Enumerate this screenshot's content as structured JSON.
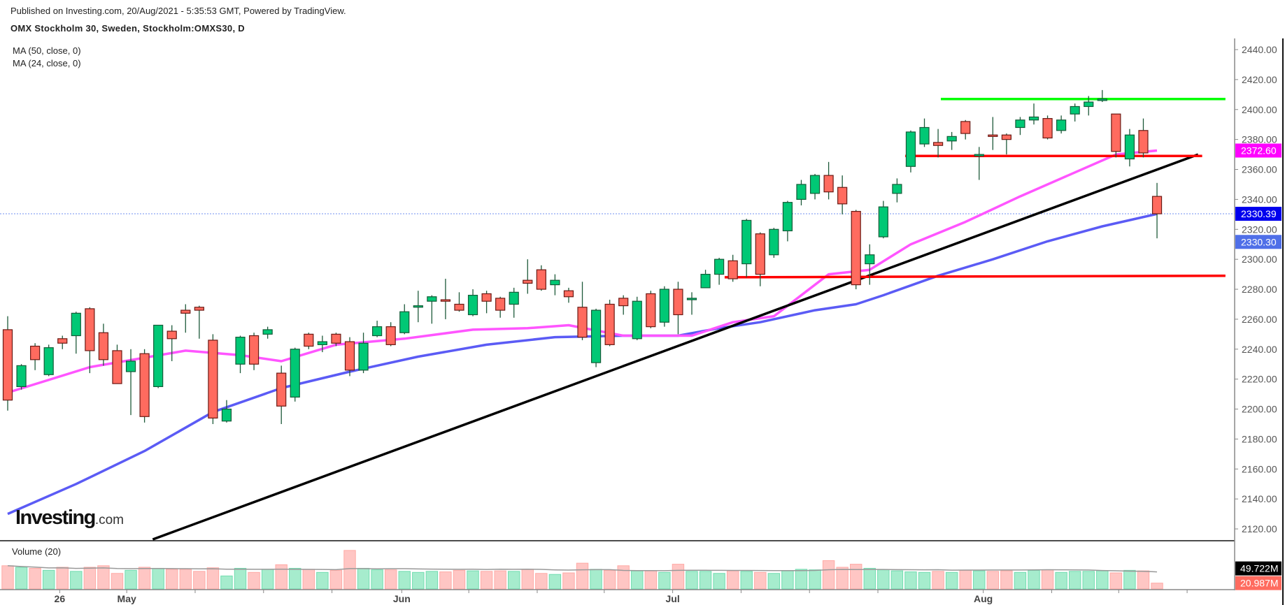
{
  "header": {
    "published": "Published on Investing.com, 20/Aug/2021 - 5:35:53 GMT, Powered by TradingView.",
    "title": "OMX Stockholm 30, Sweden, Stockholm:OMXS30, D",
    "ma50_label": "MA (50, close, 0)",
    "ma24_label": "MA (24, close, 0)",
    "volume_label": "Volume (20)"
  },
  "logo": {
    "main": "Investing",
    "suffix": ".com"
  },
  "colors": {
    "up": "#00c875",
    "down": "#ff6b5f",
    "ma50": "#5b5bf5",
    "ma24": "#ff55ff",
    "trend": "#000000",
    "support": "#ff0000",
    "resistance": "#00ff00",
    "last_price": "#0000ee",
    "ma50_tag": "#4f6fe8",
    "ma24_tag": "#ff00ff"
  },
  "chart_data": {
    "type": "candlestick",
    "title": "OMX Stockholm 30, Sweden, Stockholm:OMXS30, D",
    "ylim": [
      2110,
      2447
    ],
    "yticks": [
      "2120.00",
      "2140.00",
      "2160.00",
      "2180.00",
      "2200.00",
      "2220.00",
      "2240.00",
      "2260.00",
      "2280.00",
      "2300.00",
      "2320.00",
      "2340.00",
      "2360.00",
      "2380.00",
      "2400.00",
      "2420.00",
      "2440.00"
    ],
    "xticks": [
      {
        "label": "26",
        "index": 3.8
      },
      {
        "label": "May",
        "index": 8.7
      },
      {
        "label": "Jun",
        "index": 28.8
      },
      {
        "label": "Jul",
        "index": 48.6
      },
      {
        "label": "Aug",
        "index": 71.3
      }
    ],
    "minor_ticks": [
      13.7,
      18.7,
      23.7,
      33.7,
      38.7,
      43.6,
      53.6,
      58.6,
      63.6,
      76.3,
      81.2,
      86.2
    ],
    "candles_ohlc": [
      [
        2253,
        2262,
        2199,
        2206
      ],
      [
        2215,
        2230,
        2213,
        2229
      ],
      [
        2242,
        2244,
        2226,
        2233
      ],
      [
        2223,
        2243,
        2222,
        2241
      ],
      [
        2247,
        2249,
        2240,
        2244
      ],
      [
        2249,
        2265,
        2237,
        2264
      ],
      [
        2267,
        2268,
        2224,
        2239
      ],
      [
        2251,
        2257,
        2229,
        2233
      ],
      [
        2239,
        2243,
        2217,
        2217
      ],
      [
        2225,
        2240,
        2196,
        2232
      ],
      [
        2237,
        2240,
        2191,
        2195
      ],
      [
        2215,
        2256,
        2214,
        2256
      ],
      [
        2252,
        2256,
        2232,
        2247
      ],
      [
        2266,
        2270,
        2251,
        2264
      ],
      [
        2268,
        2269,
        2247,
        2266
      ],
      [
        2246,
        2250,
        2190,
        2194
      ],
      [
        2192,
        2206,
        2191,
        2200
      ],
      [
        2230,
        2249,
        2224,
        2248
      ],
      [
        2249,
        2251,
        2226,
        2230
      ],
      [
        2250,
        2255,
        2247,
        2253
      ],
      [
        2224,
        2229,
        2190,
        2202
      ],
      [
        2208,
        2241,
        2205,
        2240
      ],
      [
        2250,
        2251,
        2240,
        2242
      ],
      [
        2243,
        2249,
        2238,
        2245
      ],
      [
        2250,
        2251,
        2242,
        2244
      ],
      [
        2245,
        2248,
        2222,
        2226
      ],
      [
        2226,
        2251,
        2224,
        2244
      ],
      [
        2249,
        2259,
        2248,
        2255
      ],
      [
        2255,
        2258,
        2242,
        2243
      ],
      [
        2251,
        2270,
        2250,
        2265
      ],
      [
        2268,
        2279,
        2258,
        2269
      ],
      [
        2272,
        2276,
        2257,
        2275
      ],
      [
        2273,
        2287,
        2260,
        2272
      ],
      [
        2270,
        2278,
        2265,
        2266
      ],
      [
        2263,
        2280,
        2262,
        2276
      ],
      [
        2277,
        2279,
        2264,
        2272
      ],
      [
        2274,
        2275,
        2261,
        2266
      ],
      [
        2270,
        2281,
        2261,
        2278
      ],
      [
        2286,
        2300,
        2277,
        2284
      ],
      [
        2293,
        2296,
        2279,
        2280
      ],
      [
        2283,
        2290,
        2276,
        2286
      ],
      [
        2279,
        2281,
        2271,
        2275
      ],
      [
        2268,
        2285,
        2246,
        2248
      ],
      [
        2231,
        2267,
        2228,
        2266
      ],
      [
        2270,
        2273,
        2242,
        2243
      ],
      [
        2274,
        2276,
        2263,
        2269
      ],
      [
        2247,
        2275,
        2246,
        2272
      ],
      [
        2277,
        2279,
        2254,
        2255
      ],
      [
        2258,
        2282,
        2255,
        2280
      ],
      [
        2280,
        2285,
        2250,
        2263
      ],
      [
        2273,
        2278,
        2263,
        2274
      ],
      [
        2281,
        2293,
        2282,
        2290
      ],
      [
        2290,
        2301,
        2283,
        2300
      ],
      [
        2299,
        2303,
        2285,
        2287
      ],
      [
        2297,
        2327,
        2288,
        2326
      ],
      [
        2317,
        2318,
        2282,
        2290
      ],
      [
        2303,
        2321,
        2301,
        2320
      ],
      [
        2319,
        2339,
        2312,
        2338
      ],
      [
        2340,
        2353,
        2336,
        2350
      ],
      [
        2344,
        2357,
        2340,
        2356
      ],
      [
        2356,
        2365,
        2340,
        2345
      ],
      [
        2348,
        2356,
        2330,
        2337
      ],
      [
        2332,
        2333,
        2280,
        2283
      ],
      [
        2297,
        2310,
        2283,
        2303
      ],
      [
        2315,
        2339,
        2314,
        2335
      ],
      [
        2344,
        2354,
        2338,
        2350
      ],
      [
        2362,
        2386,
        2358,
        2385
      ],
      [
        2377,
        2394,
        2375,
        2388
      ],
      [
        2378,
        2387,
        2368,
        2376
      ],
      [
        2379,
        2385,
        2373,
        2382
      ],
      [
        2392,
        2393,
        2380,
        2384
      ],
      [
        2369,
        2375,
        2353,
        2370
      ],
      [
        2383,
        2395,
        2373,
        2382
      ],
      [
        2383,
        2384,
        2370,
        2380
      ],
      [
        2388,
        2395,
        2383,
        2393
      ],
      [
        2393,
        2404,
        2390,
        2395
      ],
      [
        2394,
        2396,
        2380,
        2381
      ],
      [
        2386,
        2396,
        2384,
        2393
      ],
      [
        2397,
        2404,
        2392,
        2402
      ],
      [
        2402,
        2409,
        2396,
        2405
      ],
      [
        2406,
        2413,
        2405,
        2407
      ],
      [
        2397,
        2397,
        2368,
        2372
      ],
      [
        2367,
        2387,
        2362,
        2383
      ],
      [
        2386,
        2394,
        2368,
        2371
      ],
      [
        2342,
        2351,
        2314,
        2330.39
      ]
    ],
    "volume_millions": [
      55,
      52,
      50,
      46,
      52,
      44,
      52,
      55,
      40,
      46,
      52,
      50,
      48,
      48,
      44,
      51,
      35,
      50,
      42,
      48,
      57,
      50,
      48,
      42,
      46,
      85,
      50,
      47,
      47,
      44,
      42,
      44,
      43,
      46,
      45,
      44,
      45,
      44,
      48,
      40,
      38,
      41,
      60,
      48,
      46,
      55,
      45,
      45,
      42,
      58,
      44,
      44,
      40,
      45,
      44,
      42,
      40,
      45,
      48,
      47,
      65,
      52,
      58,
      50,
      47,
      45,
      43,
      42,
      44,
      42,
      46,
      45,
      44,
      45,
      42,
      46,
      47,
      42,
      44,
      44,
      45,
      41,
      46,
      45,
      20.987
    ],
    "series": [
      {
        "name": "MA (50, close, 0)",
        "points": [
          [
            0,
            2130
          ],
          [
            5,
            2150
          ],
          [
            10,
            2172
          ],
          [
            15,
            2198
          ],
          [
            20,
            2214
          ],
          [
            25,
            2225
          ],
          [
            30,
            2235
          ],
          [
            35,
            2243
          ],
          [
            40,
            2248
          ],
          [
            45,
            2249
          ],
          [
            49,
            2249
          ],
          [
            52,
            2254
          ],
          [
            55,
            2258
          ],
          [
            59,
            2266
          ],
          [
            62,
            2270
          ],
          [
            64,
            2276
          ],
          [
            68,
            2289
          ],
          [
            72,
            2300
          ],
          [
            76,
            2312
          ],
          [
            80,
            2322
          ],
          [
            84,
            2330.3
          ]
        ]
      },
      {
        "name": "MA (24, close, 0)",
        "points": [
          [
            0,
            2211
          ],
          [
            6,
            2228
          ],
          [
            13,
            2239
          ],
          [
            17,
            2236
          ],
          [
            20,
            2232
          ],
          [
            24,
            2243
          ],
          [
            29,
            2247
          ],
          [
            34,
            2253
          ],
          [
            38,
            2254
          ],
          [
            41,
            2256
          ],
          [
            45,
            2249
          ],
          [
            50,
            2249
          ],
          [
            53,
            2258
          ],
          [
            56,
            2262
          ],
          [
            60,
            2290
          ],
          [
            63,
            2293
          ],
          [
            66,
            2310
          ],
          [
            70,
            2325
          ],
          [
            74,
            2342
          ],
          [
            78,
            2358
          ],
          [
            81,
            2370
          ],
          [
            84,
            2372.6
          ]
        ]
      }
    ],
    "trendlines": [
      {
        "name": "rising-trendline",
        "color": "#000000",
        "from": [
          10.6,
          2113
        ],
        "to": [
          87.0,
          2370
        ]
      },
      {
        "name": "upper-support-line",
        "color": "#ff0000",
        "from": [
          65.6,
          2369
        ],
        "to": [
          87.3,
          2369
        ]
      },
      {
        "name": "resistance-line",
        "color": "#00ff00",
        "from": [
          68.2,
          2407
        ],
        "to": [
          89.0,
          2407
        ]
      },
      {
        "name": "lower-support-line",
        "color": "#ff0000",
        "from": [
          52.4,
          2288
        ],
        "to": [
          89.0,
          2289
        ]
      }
    ],
    "price_tags": [
      {
        "label": "2372.60",
        "value": 2372.6,
        "color": "#ff00ff"
      },
      {
        "label": "2330.39",
        "value": 2330.39,
        "color": "#0000ee"
      },
      {
        "label": "2330.30",
        "value": 2330.3,
        "color": "#4f6fe8"
      }
    ],
    "volume_tags": [
      {
        "label": "49.722M",
        "value": 49.722,
        "color": "#000000"
      },
      {
        "label": "20.987M",
        "value": 20.987,
        "color": "#ff6b5f"
      }
    ],
    "last_price": 2330.39
  }
}
